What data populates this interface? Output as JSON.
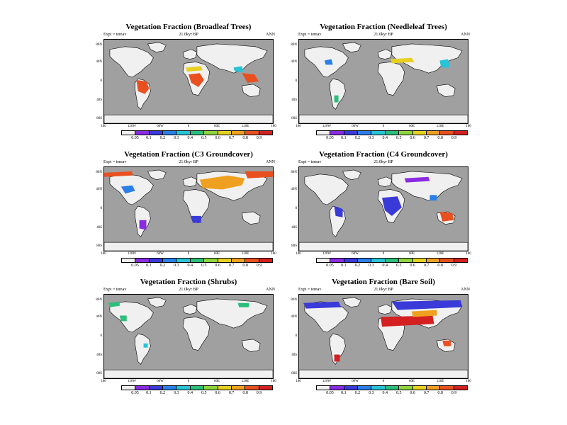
{
  "colorbar": {
    "colors": [
      "#f0f0f0",
      "#8a2be2",
      "#3a3ad8",
      "#2a7fe8",
      "#27c3d6",
      "#2bbf7a",
      "#8ed43c",
      "#e8d021",
      "#f0a020",
      "#e85020",
      "#d42020"
    ],
    "labels": [
      "0.05",
      "0.1",
      "0.2",
      "0.3",
      "0.4",
      "0.5",
      "0.6",
      "0.7",
      "0.8",
      "0.9"
    ]
  },
  "colors": {
    "ocean": "#a0a0a0",
    "land": "#f0f0f0"
  },
  "lat_ticks": [
    "80N",
    "40N",
    "0",
    "40S",
    "80S"
  ],
  "panels": [
    {
      "id": "broadleaf",
      "title": "Vegetation Fraction (Broadleaf Trees)",
      "subtitle": "21.0kyr BP",
      "expt": "Expt = temav",
      "season": "ANN",
      "lon_ticks": [
        "180",
        "120W",
        "60W",
        "0",
        "60E",
        "120E",
        "180"
      ]
    },
    {
      "id": "needleleaf",
      "title": "Vegetation Fraction (Needleleaf Trees)",
      "subtitle": "21.0kyr BP",
      "expt": "Expt = temav",
      "season": "ANN",
      "lon_ticks": [
        "180",
        "120W",
        "60W",
        "0",
        "60E",
        "120E",
        "180"
      ]
    },
    {
      "id": "c3",
      "title": "Vegetation Fraction (C3 Groundcover)",
      "subtitle": "21.0kyr BP",
      "expt": "Expt = temav",
      "season": "ANN",
      "lon_ticks": [
        "180",
        "120W",
        "60W",
        "0",
        "60E",
        "120E",
        "180"
      ]
    },
    {
      "id": "c4",
      "title": "Vegetation Fraction (C4 Groundcover)",
      "subtitle": "21.0kyr BP",
      "expt": "Expt = temav",
      "season": "",
      "lon_ticks": [
        "180",
        "120W",
        "60W",
        "0",
        "60E",
        "120E",
        "180"
      ]
    },
    {
      "id": "shrubs",
      "title": "Vegetation Fraction (Shrubs)",
      "subtitle": "21.0kyr BP",
      "expt": "Expt = temav",
      "season": "ANN",
      "lon_ticks": [
        "180",
        "120W",
        "60W",
        "0",
        "60E",
        "120E",
        "180"
      ]
    },
    {
      "id": "baresoil",
      "title": "Vegetation Fraction (Bare Soil)",
      "subtitle": "21.0kyr BP",
      "expt": "Expt = temav",
      "season": "ANN",
      "lon_ticks": [
        "180",
        "120W",
        "60W",
        "0",
        "60E",
        "120E",
        "180"
      ]
    }
  ]
}
